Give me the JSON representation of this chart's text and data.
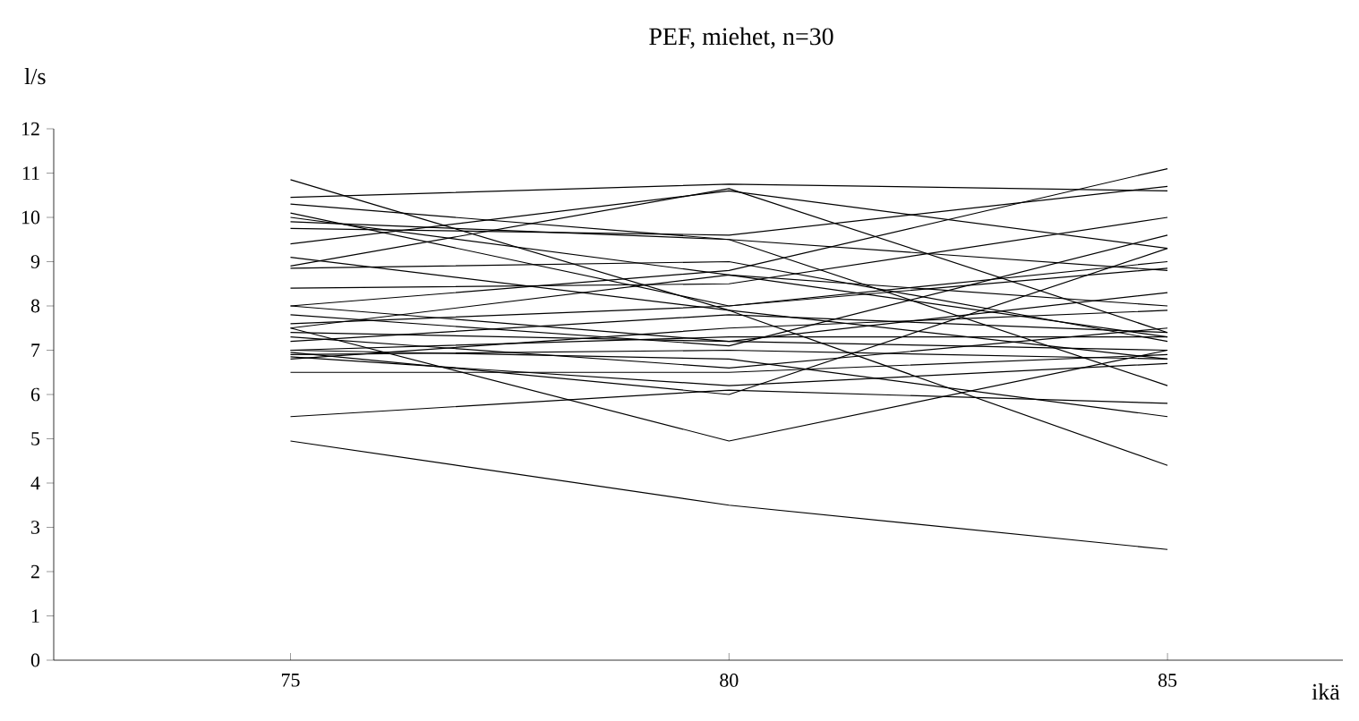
{
  "chart_data": {
    "type": "line",
    "title": "PEF, miehet, n=30",
    "ylabel": "l/s",
    "xlabel": "ikä",
    "x": [
      75,
      80,
      85
    ],
    "xlim": [
      72.3,
      87
    ],
    "xticks": [
      75,
      80,
      85
    ],
    "ylim": [
      0,
      12
    ],
    "yticks": [
      0,
      1,
      2,
      3,
      4,
      5,
      6,
      7,
      8,
      9,
      10,
      11,
      12
    ],
    "marker": "none",
    "line_style": "solid",
    "series": [
      {
        "color": "#000000",
        "values": [
          4.95,
          3.5,
          2.5
        ]
      },
      {
        "color": "#000000",
        "values": [
          5.5,
          6.1,
          5.8
        ]
      },
      {
        "color": "#000000",
        "values": [
          7.5,
          4.95,
          7.0
        ]
      },
      {
        "color": "#000000",
        "values": [
          6.5,
          6.5,
          6.9
        ]
      },
      {
        "color": "#000000",
        "values": [
          10.85,
          7.9,
          4.4
        ]
      },
      {
        "color": "#000000",
        "values": [
          10.45,
          10.75,
          10.6
        ]
      },
      {
        "color": "#000000",
        "values": [
          8.9,
          10.65,
          7.4
        ]
      },
      {
        "color": "#000000",
        "values": [
          9.4,
          10.6,
          9.3
        ]
      },
      {
        "color": "#000000",
        "values": [
          10.3,
          9.5,
          6.2
        ]
      },
      {
        "color": "#000000",
        "values": [
          10.0,
          8.7,
          7.3
        ]
      },
      {
        "color": "#000000",
        "values": [
          9.75,
          9.6,
          10.7
        ]
      },
      {
        "color": "#000000",
        "values": [
          8.85,
          9.0,
          7.2
        ]
      },
      {
        "color": "#000000",
        "values": [
          8.4,
          8.5,
          10.0
        ]
      },
      {
        "color": "#000000",
        "values": [
          8.0,
          8.8,
          11.1
        ]
      },
      {
        "color": "#000000",
        "values": [
          7.8,
          7.1,
          9.6
        ]
      },
      {
        "color": "#000000",
        "values": [
          7.6,
          8.0,
          8.85
        ]
      },
      {
        "color": "#000000",
        "values": [
          7.4,
          7.2,
          8.3
        ]
      },
      {
        "color": "#000000",
        "values": [
          7.3,
          6.6,
          7.5
        ]
      },
      {
        "color": "#000000",
        "values": [
          7.2,
          7.8,
          7.4
        ]
      },
      {
        "color": "#000000",
        "values": [
          7.0,
          6.8,
          5.5
        ]
      },
      {
        "color": "#000000",
        "values": [
          6.9,
          7.0,
          6.8
        ]
      },
      {
        "color": "#000000",
        "values": [
          6.85,
          6.2,
          6.7
        ]
      },
      {
        "color": "#000000",
        "values": [
          6.8,
          7.5,
          7.9
        ]
      },
      {
        "color": "#000000",
        "values": [
          10.1,
          8.0,
          9.0
        ]
      },
      {
        "color": "#000000",
        "values": [
          9.1,
          7.9,
          6.8
        ]
      },
      {
        "color": "#000000",
        "values": [
          8.0,
          7.2,
          7.0
        ]
      },
      {
        "color": "#000000",
        "values": [
          7.5,
          8.7,
          8.0
        ]
      },
      {
        "color": "#000000",
        "values": [
          6.95,
          6.0,
          9.3
        ]
      },
      {
        "color": "#000000",
        "values": [
          9.9,
          9.5,
          8.8
        ]
      },
      {
        "color": "#000000",
        "values": [
          7.0,
          7.3,
          7.3
        ]
      }
    ]
  }
}
